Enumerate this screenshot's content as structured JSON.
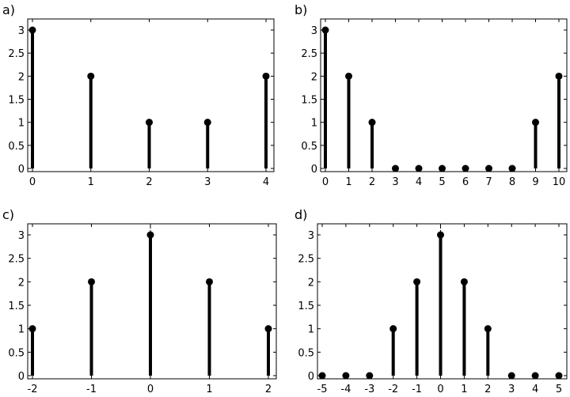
{
  "chart_data": [
    {
      "type": "stem",
      "panel_label": "a)",
      "x": [
        0,
        1,
        2,
        3,
        4
      ],
      "values": [
        3,
        2,
        1,
        1,
        2
      ],
      "xticks": [
        "0",
        "1",
        "2",
        "3",
        "4"
      ],
      "yticks": [
        "0",
        "0.5",
        "1",
        "1.5",
        "2",
        "2.5",
        "3"
      ],
      "xlim": [
        0,
        4
      ],
      "ylim": [
        0,
        3.15
      ],
      "grid": false
    },
    {
      "type": "stem",
      "panel_label": "b)",
      "x": [
        0,
        1,
        2,
        3,
        4,
        5,
        6,
        7,
        8,
        9,
        10
      ],
      "values": [
        3,
        2,
        1,
        0,
        0,
        0,
        0,
        0,
        0,
        1,
        2
      ],
      "xticks": [
        "0",
        "1",
        "2",
        "3",
        "4",
        "5",
        "6",
        "7",
        "8",
        "9",
        "10"
      ],
      "yticks": [
        "0",
        "0.5",
        "1",
        "1.5",
        "2",
        "2.5",
        "3"
      ],
      "xlim": [
        0,
        10
      ],
      "ylim": [
        0,
        3.15
      ],
      "grid": false
    },
    {
      "type": "stem",
      "panel_label": "c)",
      "x": [
        -2,
        -1,
        0,
        1,
        2
      ],
      "values": [
        1,
        2,
        3,
        2,
        1
      ],
      "xticks": [
        "-2",
        "-1",
        "0",
        "1",
        "2"
      ],
      "yticks": [
        "0",
        "0.5",
        "1",
        "1.5",
        "2",
        "2.5",
        "3"
      ],
      "xlim": [
        -2,
        2
      ],
      "ylim": [
        0,
        3.15
      ],
      "grid": false
    },
    {
      "type": "stem",
      "panel_label": "d)",
      "x": [
        -5,
        -4,
        -3,
        -2,
        -1,
        0,
        1,
        2,
        3,
        4,
        5
      ],
      "values": [
        0,
        0,
        0,
        1,
        2,
        3,
        2,
        1,
        0,
        0,
        0
      ],
      "xticks": [
        "-5",
        "-4",
        "-3",
        "-2",
        "-1",
        "0",
        "1",
        "2",
        "3",
        "4",
        "5"
      ],
      "yticks": [
        "0",
        "0.5",
        "1",
        "1.5",
        "2",
        "2.5",
        "3"
      ],
      "xlim": [
        -5,
        5
      ],
      "ylim": [
        0,
        3.15
      ],
      "grid": false
    }
  ]
}
